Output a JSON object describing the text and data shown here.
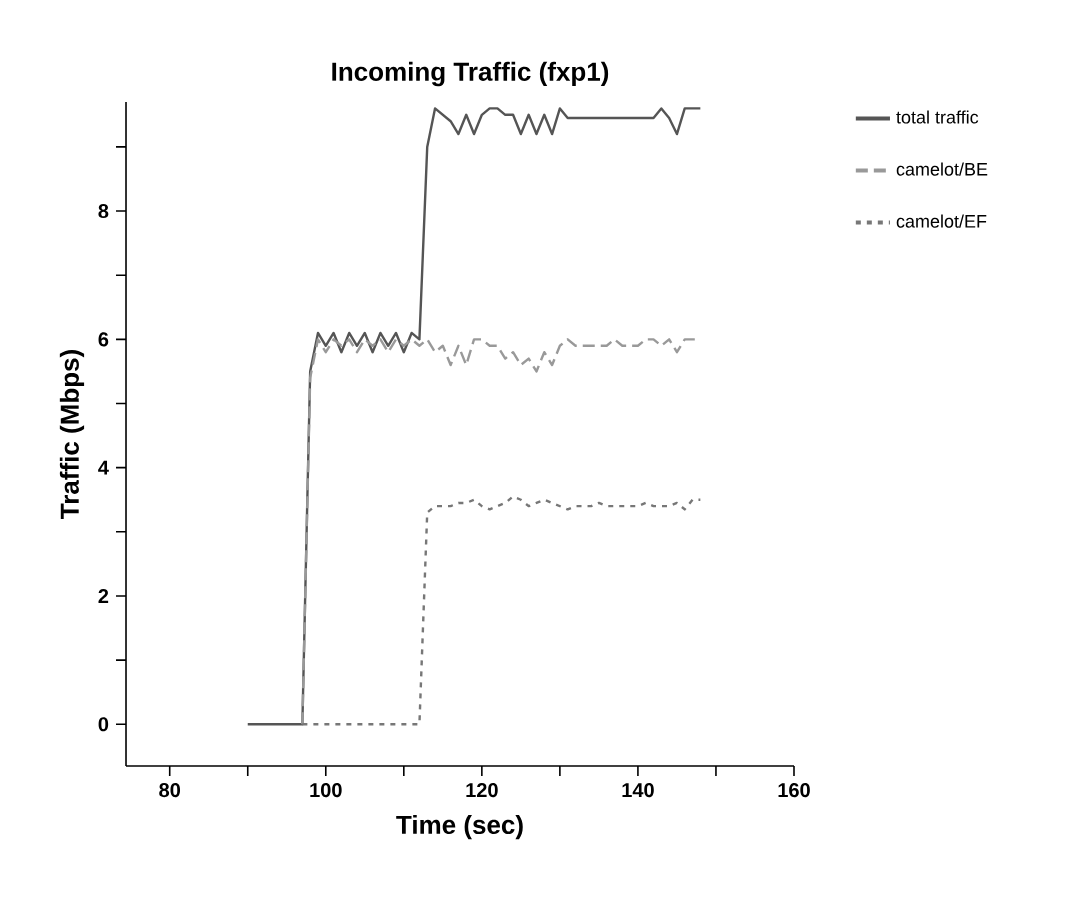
{
  "chart_data": {
    "type": "line",
    "title": "Incoming Traffic (fxp1)",
    "xlabel": "Time (sec)",
    "ylabel": "Traffic (Mbps)",
    "xlim": [
      74.4,
      160
    ],
    "ylim": [
      -0.65,
      9.7
    ],
    "xticks": [
      80,
      {
        "value": 90,
        "label": null
      },
      100,
      {
        "value": 110,
        "label": null
      },
      120,
      {
        "value": 130,
        "label": null
      },
      140,
      {
        "value": 150,
        "label": null
      },
      160
    ],
    "yticks": [
      0,
      {
        "value": 1,
        "label": null
      },
      2,
      {
        "value": 3,
        "label": null
      },
      4,
      {
        "value": 5,
        "label": null
      },
      6,
      {
        "value": 7,
        "label": null
      },
      8,
      {
        "value": 9,
        "label": null
      }
    ],
    "legend": "right",
    "marker": "none",
    "series": [
      {
        "name": "total traffic",
        "color": "#555555",
        "line_style": "solid",
        "x": [
          90,
          97,
          98,
          99,
          100,
          101,
          102,
          103,
          104,
          105,
          106,
          107,
          108,
          109,
          110,
          111,
          112,
          113,
          114,
          115,
          116,
          117,
          118,
          119,
          120,
          121,
          122,
          123,
          124,
          125,
          126,
          127,
          128,
          129,
          130,
          131,
          132,
          133,
          134,
          135,
          136,
          137,
          138,
          139,
          140,
          141,
          142,
          143,
          144,
          145,
          146,
          147,
          148
        ],
        "values": [
          0,
          0,
          5.5,
          6.1,
          5.9,
          6.1,
          5.8,
          6.1,
          5.9,
          6.1,
          5.8,
          6.1,
          5.9,
          6.1,
          5.8,
          6.1,
          6.0,
          9.0,
          9.6,
          9.5,
          9.4,
          9.2,
          9.5,
          9.2,
          9.5,
          9.6,
          9.6,
          9.5,
          9.5,
          9.2,
          9.5,
          9.2,
          9.5,
          9.2,
          9.6,
          9.45,
          9.45,
          9.45,
          9.45,
          9.45,
          9.45,
          9.45,
          9.45,
          9.45,
          9.45,
          9.45,
          9.45,
          9.6,
          9.45,
          9.2,
          9.6,
          9.6,
          9.6
        ]
      },
      {
        "name": "camelot/BE",
        "color": "#999999",
        "line_style": "dashed",
        "x": [
          97,
          98,
          99,
          100,
          101,
          102,
          103,
          104,
          105,
          106,
          107,
          108,
          109,
          110,
          111,
          112,
          113,
          114,
          115,
          116,
          117,
          118,
          119,
          120,
          121,
          122,
          123,
          124,
          125,
          126,
          127,
          128,
          129,
          130,
          131,
          132,
          133,
          134,
          135,
          136,
          137,
          138,
          139,
          140,
          141,
          142,
          143,
          144,
          145,
          146,
          147,
          148
        ],
        "values": [
          0,
          5.4,
          6.0,
          5.8,
          6.0,
          5.9,
          6.0,
          5.8,
          6.0,
          5.9,
          6.0,
          5.8,
          6.0,
          5.9,
          6.0,
          5.9,
          6.0,
          5.8,
          5.9,
          5.6,
          5.9,
          5.6,
          6.0,
          6.0,
          5.9,
          5.9,
          5.7,
          5.8,
          5.6,
          5.7,
          5.5,
          5.8,
          5.6,
          5.9,
          6.0,
          5.9,
          5.9,
          5.9,
          5.9,
          5.9,
          6.0,
          5.9,
          5.9,
          5.9,
          6.0,
          6.0,
          5.9,
          6.0,
          5.8,
          6.0,
          6.0,
          6.0
        ]
      },
      {
        "name": "camelot/EF",
        "color": "#777777",
        "line_style": "dotted",
        "x": [
          97,
          112,
          113,
          114,
          115,
          116,
          117,
          118,
          119,
          120,
          121,
          122,
          123,
          124,
          125,
          126,
          127,
          128,
          129,
          130,
          131,
          132,
          133,
          134,
          135,
          136,
          137,
          138,
          139,
          140,
          141,
          142,
          143,
          144,
          145,
          146,
          147,
          148
        ],
        "values": [
          0,
          0,
          3.3,
          3.4,
          3.4,
          3.4,
          3.45,
          3.45,
          3.5,
          3.4,
          3.35,
          3.4,
          3.45,
          3.55,
          3.5,
          3.4,
          3.45,
          3.5,
          3.45,
          3.4,
          3.35,
          3.4,
          3.4,
          3.4,
          3.45,
          3.4,
          3.4,
          3.4,
          3.4,
          3.4,
          3.45,
          3.4,
          3.4,
          3.4,
          3.45,
          3.35,
          3.5,
          3.5
        ]
      }
    ]
  }
}
